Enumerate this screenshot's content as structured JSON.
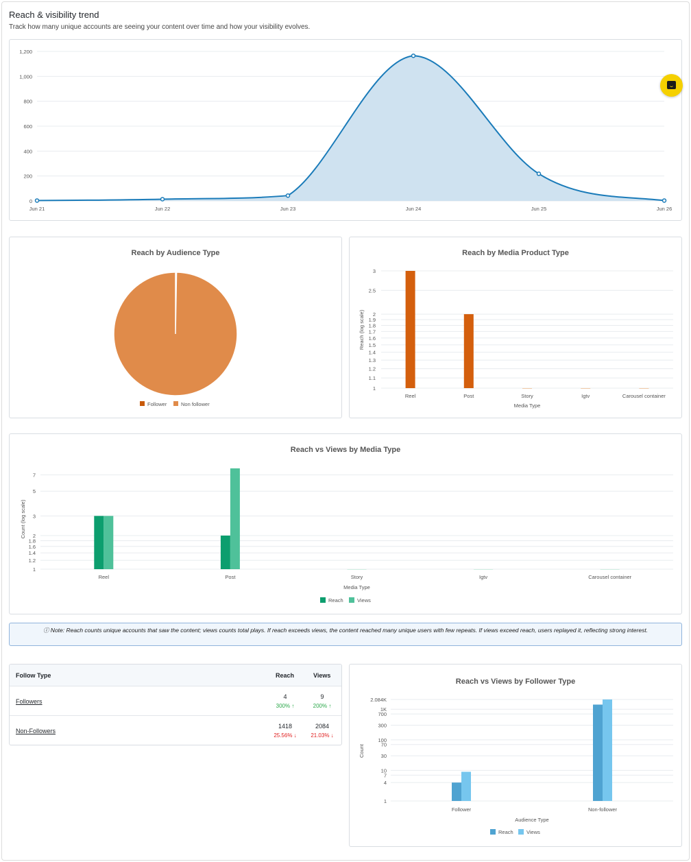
{
  "header": {
    "title": "Reach & visibility trend",
    "subtitle": "Track how many unique accounts are seeing your content over time and how your visibility evolves."
  },
  "trend_chart": {
    "type": "area",
    "x": [
      "Jun 21",
      "Jun 22",
      "Jun 23",
      "Jun 24",
      "Jun 25",
      "Jun 26"
    ],
    "y": [
      3,
      14,
      43,
      1165,
      218,
      3
    ],
    "yticks": [
      "1,200",
      "1,000",
      "800",
      "600",
      "400",
      "200",
      "0"
    ],
    "ylim": [
      0,
      1200
    ],
    "color": "#1a7bb9",
    "fill": "#cfe2f0"
  },
  "audience_pie": {
    "title": "Reach by Audience Type",
    "labels": [
      "Follower",
      "Non follower"
    ],
    "values": [
      4,
      1418
    ],
    "colors": [
      "#c85a0a",
      "#e08b4a"
    ]
  },
  "media_product": {
    "title": "Reach by Media Product Type",
    "xlabel": "Media Type",
    "ylabel": "Reach (log scale)",
    "categories": [
      "Reel",
      "Post",
      "Story",
      "Igtv",
      "Carousel container"
    ],
    "values": [
      3,
      2,
      1,
      1,
      1
    ],
    "yticks": [
      "3",
      "2.5",
      "2",
      "1.9",
      "1.8",
      "1.7",
      "1.6",
      "1.5",
      "1.4",
      "1.3",
      "1.2",
      "1.1",
      "1"
    ],
    "color": "#d45f0d"
  },
  "reach_views": {
    "title": "Reach vs Views by Media Type",
    "xlabel": "Media Type",
    "ylabel": "Count (log scale)",
    "categories": [
      "Reel",
      "Post",
      "Story",
      "Igtv",
      "Carousel container"
    ],
    "series": [
      {
        "name": "Reach",
        "values": [
          3,
          2,
          1,
          1,
          1
        ],
        "color": "#0c9e6e"
      },
      {
        "name": "Views",
        "values": [
          3,
          8,
          1,
          1,
          1
        ],
        "color": "#4fc19a"
      }
    ],
    "yticks": [
      "7",
      "5",
      "3",
      "2",
      "1.8",
      "1.6",
      "1.4",
      "1.2",
      "1"
    ]
  },
  "note": "ⓘ Note: Reach counts unique accounts that saw the content; views counts total plays. If reach exceeds views, the content reached many unique users with few repeats. If views exceed reach, users replayed it, reflecting strong interest.",
  "follow_table": {
    "headers": {
      "type": "Follow Type",
      "reach": "Reach",
      "views": "Views"
    },
    "rows": [
      {
        "label": "Followers",
        "reach": "4",
        "reach_pct": "300% ↑",
        "views": "9",
        "views_pct": "200% ↑"
      },
      {
        "label": "Non-Followers",
        "reach": "1418",
        "reach_pct": "25.56% ↓",
        "views": "2084",
        "views_pct": "21.03% ↓"
      }
    ]
  },
  "follower_chart": {
    "title": "Reach vs Views by Follower Type",
    "xlabel": "Audience Type",
    "ylabel": "Count",
    "categories": [
      "Follower",
      "Non-follower"
    ],
    "series": [
      {
        "name": "Reach",
        "values": [
          4,
          1418
        ],
        "color": "#4fa3d1"
      },
      {
        "name": "Views",
        "values": [
          9,
          2084
        ],
        "color": "#76c6ee"
      }
    ],
    "yticks": [
      "2.084K",
      "1K",
      "700",
      "300",
      "100",
      "70",
      "30",
      "10",
      "7",
      "4",
      "1"
    ]
  },
  "chart_data": [
    {
      "type": "area",
      "title": "",
      "x": [
        "Jun 21",
        "Jun 22",
        "Jun 23",
        "Jun 24",
        "Jun 25",
        "Jun 26"
      ],
      "y": [
        3,
        14,
        43,
        1165,
        218,
        3
      ],
      "ylim": [
        0,
        1200
      ]
    },
    {
      "type": "pie",
      "title": "Reach by Audience Type",
      "labels": [
        "Follower",
        "Non follower"
      ],
      "values": [
        4,
        1418
      ]
    },
    {
      "type": "bar",
      "title": "Reach by Media Product Type",
      "xlabel": "Media Type",
      "ylabel": "Reach (log scale)",
      "categories": [
        "Reel",
        "Post",
        "Story",
        "Igtv",
        "Carousel container"
      ],
      "values": [
        3,
        2,
        1,
        1,
        1
      ],
      "ylim": [
        1,
        3
      ],
      "yscale": "log"
    },
    {
      "type": "bar",
      "title": "Reach vs Views by Media Type",
      "xlabel": "Media Type",
      "ylabel": "Count (log scale)",
      "categories": [
        "Reel",
        "Post",
        "Story",
        "Igtv",
        "Carousel container"
      ],
      "series": [
        {
          "name": "Reach",
          "values": [
            3,
            2,
            1,
            1,
            1
          ]
        },
        {
          "name": "Views",
          "values": [
            3,
            8,
            1,
            1,
            1
          ]
        }
      ],
      "yscale": "log"
    },
    {
      "type": "bar",
      "title": "Reach vs Views by Follower Type",
      "xlabel": "Audience Type",
      "ylabel": "Count",
      "categories": [
        "Follower",
        "Non-follower"
      ],
      "series": [
        {
          "name": "Reach",
          "values": [
            4,
            1418
          ]
        },
        {
          "name": "Views",
          "values": [
            9,
            2084
          ]
        }
      ],
      "yscale": "log"
    }
  ]
}
